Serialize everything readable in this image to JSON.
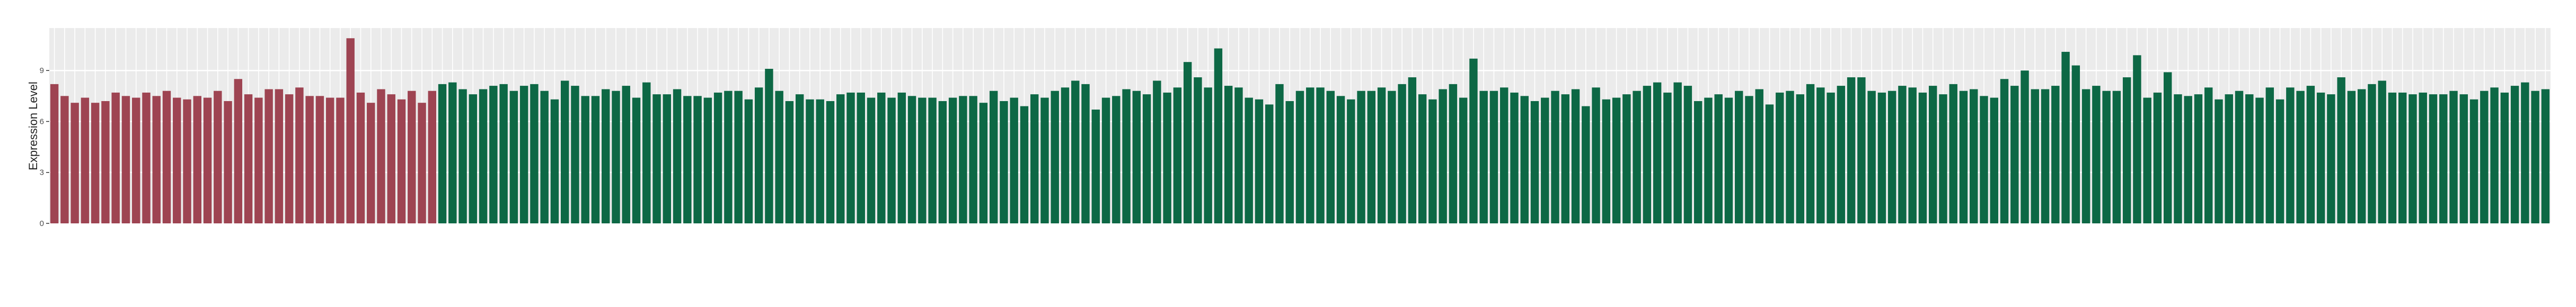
{
  "chart_data": {
    "type": "bar",
    "y_label": "Expression Level",
    "ylim": [
      0,
      11.5
    ],
    "yticks": [
      0,
      3,
      6,
      9
    ],
    "grid": true,
    "background": "#ebebeb",
    "series": [
      {
        "color": "#9e4452",
        "values": [
          8.2,
          7.5,
          7.1,
          7.4,
          7.1,
          7.2,
          7.7,
          7.5,
          7.4,
          7.7,
          7.5,
          7.8,
          7.4,
          7.3,
          7.5,
          7.4,
          7.8,
          7.2,
          8.5,
          7.6,
          7.4,
          7.9,
          7.9,
          7.6,
          8.0,
          7.5,
          7.5,
          7.4,
          7.4,
          10.9,
          7.7,
          7.1,
          7.9,
          7.6,
          7.3,
          7.8,
          7.1,
          7.8,
          null,
          null,
          null,
          null,
          null,
          null,
          null,
          null,
          null,
          null,
          null,
          null,
          null,
          null,
          null,
          null,
          null,
          null,
          null,
          null,
          null,
          null,
          null,
          null,
          null,
          null,
          null,
          null,
          null,
          null,
          null,
          null,
          null,
          null,
          null,
          null,
          null,
          null,
          null,
          null,
          null,
          null,
          null,
          null,
          null,
          null,
          null,
          null,
          null,
          null,
          null,
          null,
          null,
          null,
          null,
          null,
          null,
          null,
          null,
          null,
          null,
          null,
          null,
          null,
          null,
          null,
          null,
          null,
          null,
          null,
          null,
          null,
          null,
          null,
          null,
          null,
          null,
          null,
          null,
          null,
          null,
          null,
          null,
          null,
          null,
          null,
          null,
          null,
          null,
          null,
          null,
          null,
          null,
          null,
          null,
          null,
          null,
          null,
          null,
          null,
          null,
          null,
          null,
          null,
          null,
          null,
          null,
          null,
          null,
          null,
          null,
          null,
          null,
          null,
          null,
          null,
          null,
          null,
          null,
          null,
          null,
          null,
          null,
          null,
          null,
          null,
          null,
          null,
          null,
          null,
          null,
          null,
          null,
          null,
          null,
          null,
          null,
          null,
          null,
          null,
          null,
          null,
          null,
          null,
          null,
          null,
          null,
          null,
          null,
          null,
          null,
          null,
          null,
          null,
          null,
          null,
          null,
          null,
          null,
          null,
          null,
          null,
          null,
          null,
          null,
          null,
          null,
          null,
          null,
          null,
          null,
          null,
          null,
          null,
          null,
          null,
          null,
          null,
          null,
          null,
          null,
          null,
          null,
          null,
          null,
          null,
          null,
          null,
          null,
          null,
          null,
          null,
          null,
          null,
          null,
          null,
          null,
          null,
          null,
          null,
          null,
          null,
          null,
          null,
          null,
          null,
          null
        ]
      },
      {
        "color": "#0d6845",
        "values": [
          null,
          null,
          null,
          null,
          null,
          null,
          null,
          null,
          null,
          null,
          null,
          null,
          null,
          null,
          null,
          null,
          null,
          null,
          null,
          null,
          null,
          null,
          null,
          null,
          null,
          null,
          null,
          null,
          null,
          null,
          null,
          null,
          null,
          null,
          null,
          null,
          null,
          null,
          8.2,
          8.3,
          7.9,
          7.6,
          7.9,
          8.1,
          8.2,
          7.8,
          8.1,
          8.2,
          7.8,
          7.3,
          8.4,
          8.1,
          7.5,
          7.5,
          7.9,
          7.8,
          8.1,
          7.4,
          8.3,
          7.6,
          7.6,
          7.9,
          7.5,
          7.5,
          7.4,
          7.7,
          7.8,
          7.8,
          7.3,
          8.0,
          9.1,
          7.8,
          7.2,
          7.6,
          7.3,
          7.3,
          7.2,
          7.6,
          7.7,
          7.7,
          7.4,
          7.7,
          7.4,
          7.7,
          7.5,
          7.4,
          7.4,
          7.2,
          7.4,
          7.5,
          7.5,
          7.1,
          7.8,
          7.2,
          7.4,
          6.9,
          7.6,
          7.4,
          7.8,
          8.0,
          8.4,
          8.2,
          6.7,
          7.4,
          7.5,
          7.9,
          7.8,
          7.6,
          8.4,
          7.7,
          8.0,
          9.5,
          8.6,
          8.0,
          10.3,
          8.1,
          8.0,
          7.4,
          7.3,
          7.0,
          8.2,
          7.2,
          7.8,
          8.0,
          8.0,
          7.8,
          7.5,
          7.3,
          7.8,
          7.8,
          8.0,
          7.8,
          8.2,
          8.6,
          7.6,
          7.3,
          7.9,
          8.2,
          7.4,
          9.7,
          7.8,
          7.8,
          8.0,
          7.7,
          7.5,
          7.2,
          7.4,
          7.8,
          7.6,
          7.9,
          6.9,
          8.0,
          7.3,
          7.4,
          7.6,
          7.8,
          8.1,
          8.3,
          7.7,
          8.3,
          8.1,
          7.2,
          7.4,
          7.6,
          7.4,
          7.8,
          7.5,
          7.9,
          7.0,
          7.7,
          7.8,
          7.6,
          8.2,
          8.0,
          7.7,
          8.1,
          8.6,
          8.6,
          7.8,
          7.7,
          7.8,
          8.1,
          8.0,
          7.7,
          8.1,
          7.6,
          8.2,
          7.8,
          7.9,
          7.5,
          7.4,
          8.5,
          8.1,
          9.0,
          7.9,
          7.9,
          8.1,
          10.1,
          9.3,
          7.9,
          8.1,
          7.8,
          7.8,
          8.6,
          9.9,
          7.4,
          7.7,
          8.9,
          7.6,
          7.5,
          7.6,
          8.0,
          7.3,
          7.6,
          7.8,
          7.6,
          7.4,
          8.0,
          7.3,
          8.0,
          7.8,
          8.1,
          7.7,
          7.6,
          8.6,
          7.8,
          7.9,
          8.2,
          8.4,
          7.7,
          7.7,
          7.6,
          7.7,
          7.6,
          7.6,
          7.8,
          7.6,
          7.3,
          7.8,
          8.0,
          7.7,
          8.1,
          8.3,
          7.8,
          7.9
        ]
      }
    ]
  }
}
